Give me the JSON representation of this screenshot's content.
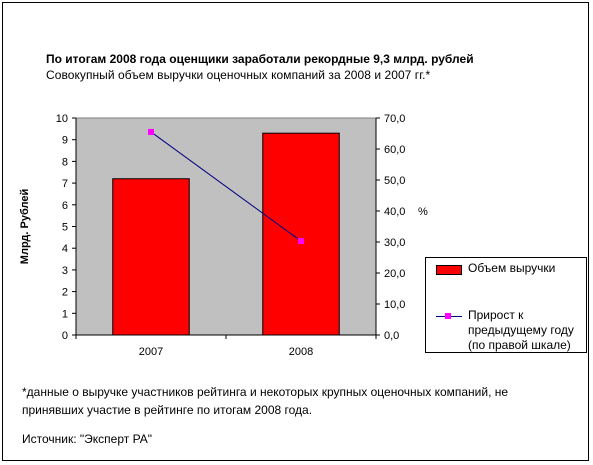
{
  "title": "По итогам 2008 года оценщики заработали рекордные 9,3 млрд. рублей",
  "subtitle": "Совокупный объем выручки оценочных компаний за 2008 и 2007 гг.*",
  "notes": {
    "line1": "*данные о выручке участников рейтинга и некоторых крупных оценочных компаний, не",
    "line2": "принявших участие в рейтинге по итогам 2008 года.",
    "source": "Источник: \"Эксперт РА\""
  },
  "chart_data": {
    "type": "bar",
    "categories": [
      "2007",
      "2008"
    ],
    "ylabel": "Млрд. Рублей",
    "y2label": "%",
    "ylim": [
      0,
      10
    ],
    "y2lim": [
      0,
      70
    ],
    "yticks": [
      "0",
      "1",
      "2",
      "3",
      "4",
      "5",
      "6",
      "7",
      "8",
      "9",
      "10"
    ],
    "y2ticks": [
      "0,0",
      "10,0",
      "20,0",
      "30,0",
      "40,0",
      "50,0",
      "60,0",
      "70,0"
    ],
    "series": [
      {
        "name": "Объем выручки",
        "type": "bar",
        "axis": "left",
        "values": [
          7.2,
          9.3
        ],
        "color": "#ff0000"
      },
      {
        "name": "Прирост к предыдущему году (по правой шкале)",
        "type": "line",
        "axis": "right",
        "values": [
          65.5,
          30.3
        ],
        "color": "#000080",
        "marker_color": "#ff00ff"
      }
    ],
    "plot_background": "#c0c0c0",
    "grid": false,
    "legend_position": "right"
  }
}
